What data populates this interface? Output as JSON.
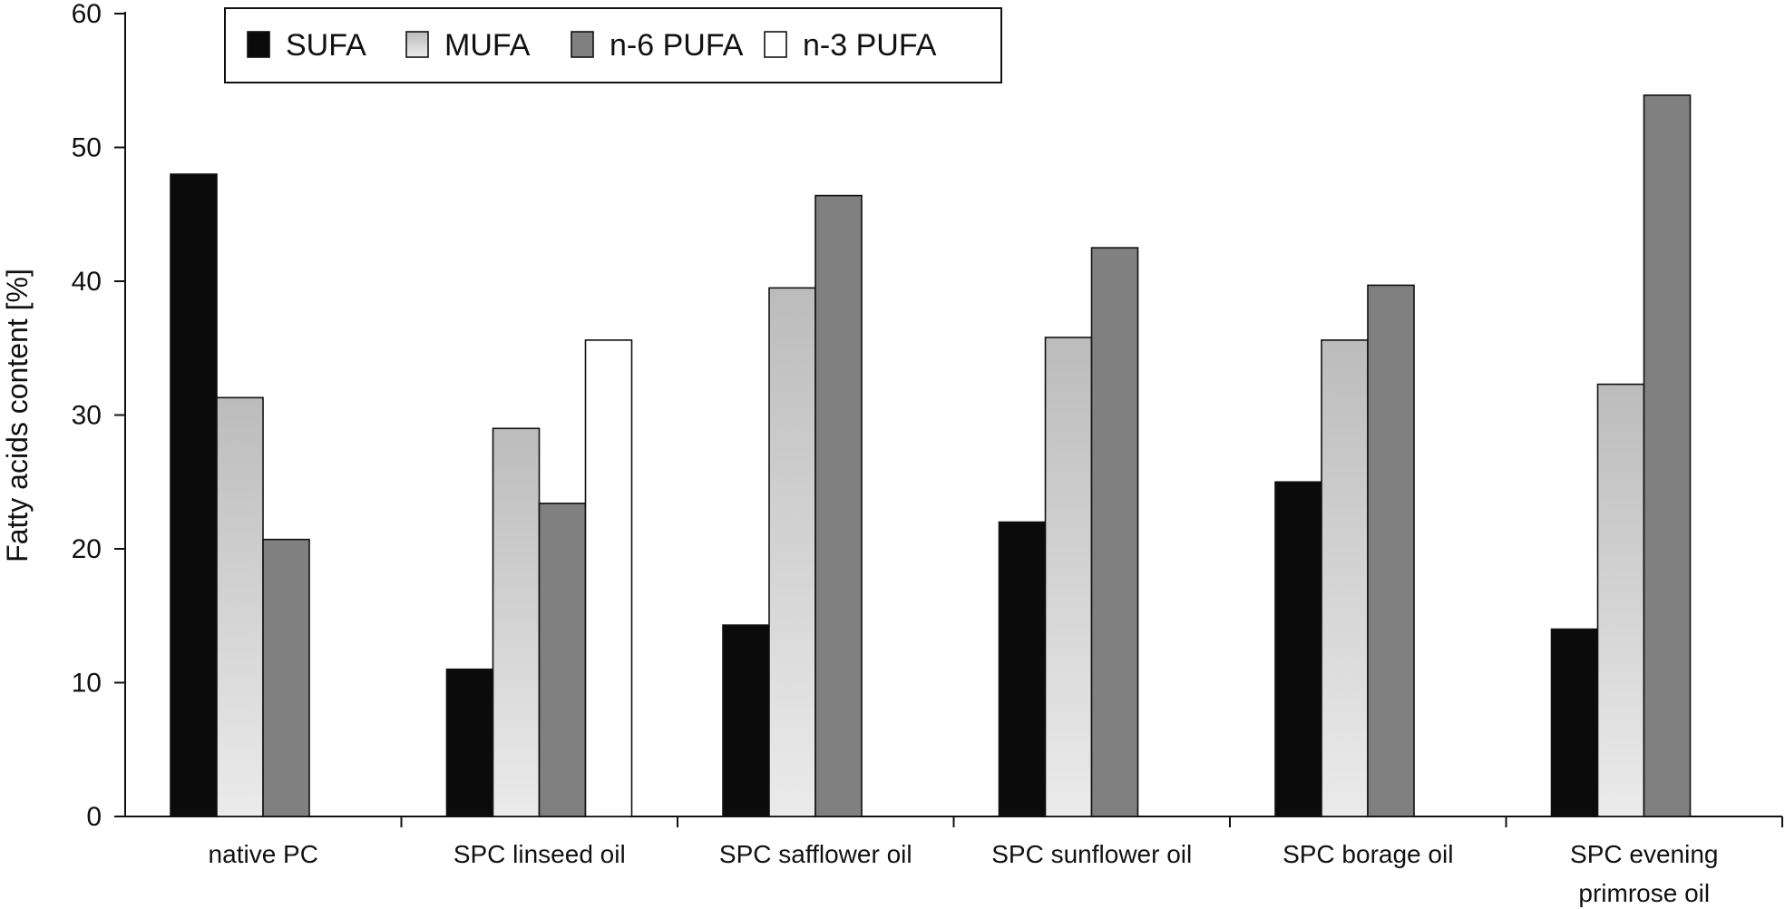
{
  "chart_data": {
    "type": "bar",
    "title": "",
    "xlabel": "",
    "ylabel": "Fatty acids content [%]",
    "ylim": [
      0,
      60
    ],
    "yticks": [
      0,
      10,
      20,
      30,
      40,
      50,
      60
    ],
    "categories": [
      [
        "native PC"
      ],
      [
        "SPC linseed oil"
      ],
      [
        "SPC safflower oil"
      ],
      [
        "SPC sunflower oil"
      ],
      [
        "SPC borage oil"
      ],
      [
        "SPC evening",
        "primrose oil"
      ]
    ],
    "series": [
      {
        "name": "SUFA",
        "values": [
          48.0,
          11.0,
          14.3,
          22.0,
          25.0,
          14.0
        ]
      },
      {
        "name": "MUFA",
        "values": [
          31.3,
          29.0,
          39.5,
          35.8,
          35.6,
          32.3
        ]
      },
      {
        "name": "n-6 PUFA",
        "values": [
          20.7,
          23.4,
          46.4,
          42.5,
          39.7,
          53.9
        ]
      },
      {
        "name": "n-3 PUFA",
        "values": [
          null,
          35.6,
          null,
          null,
          null,
          null
        ]
      }
    ],
    "colors": {
      "SUFA": "#0b0b0b",
      "MUFA_top": "#bcbcbc",
      "MUFA_bottom": "#ebebeb",
      "n-6 PUFA": "#7f807f",
      "n-3 PUFA": "#ffffff",
      "outline": "#111111"
    },
    "legend": {
      "placement": "top-left",
      "border": true
    },
    "grid": false
  }
}
